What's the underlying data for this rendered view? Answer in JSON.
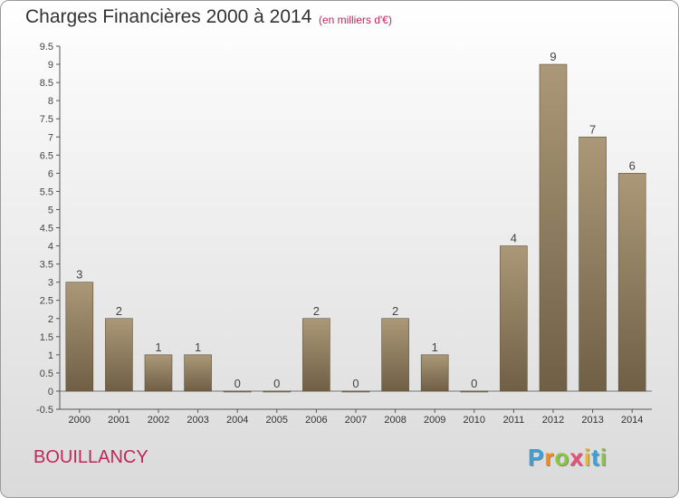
{
  "chart_data": {
    "type": "bar",
    "title": "Charges Financières 2000 à 2014",
    "subtitle": "(en milliers d'€)",
    "categories": [
      "2000",
      "2001",
      "2002",
      "2003",
      "2004",
      "2005",
      "2006",
      "2007",
      "2008",
      "2009",
      "2010",
      "2011",
      "2012",
      "2013",
      "2014"
    ],
    "values": [
      3,
      2,
      1,
      1,
      0,
      0,
      2,
      0,
      2,
      1,
      0,
      4,
      9,
      7,
      6
    ],
    "ylim": [
      -0.5,
      9.5
    ],
    "yticks": [
      "-0.5",
      "0",
      "0.5",
      "1",
      "1.5",
      "2",
      "2.5",
      "3",
      "3.5",
      "4",
      "4.5",
      "5",
      "5.5",
      "6",
      "6.5",
      "7",
      "7.5",
      "8",
      "8.5",
      "9",
      "9.5"
    ],
    "grid": false,
    "bar_color": "#8c7b60"
  },
  "footer": {
    "name": "BOUILLANCY",
    "logo": [
      "P",
      "r",
      "o",
      "x",
      "i",
      "t",
      "i"
    ],
    "logo_colors": [
      "#3aa0d8",
      "#f28c1e",
      "#8cc63f",
      "#e94e77",
      "#f2b71e",
      "#3aa0d8",
      "#8cc63f"
    ]
  }
}
